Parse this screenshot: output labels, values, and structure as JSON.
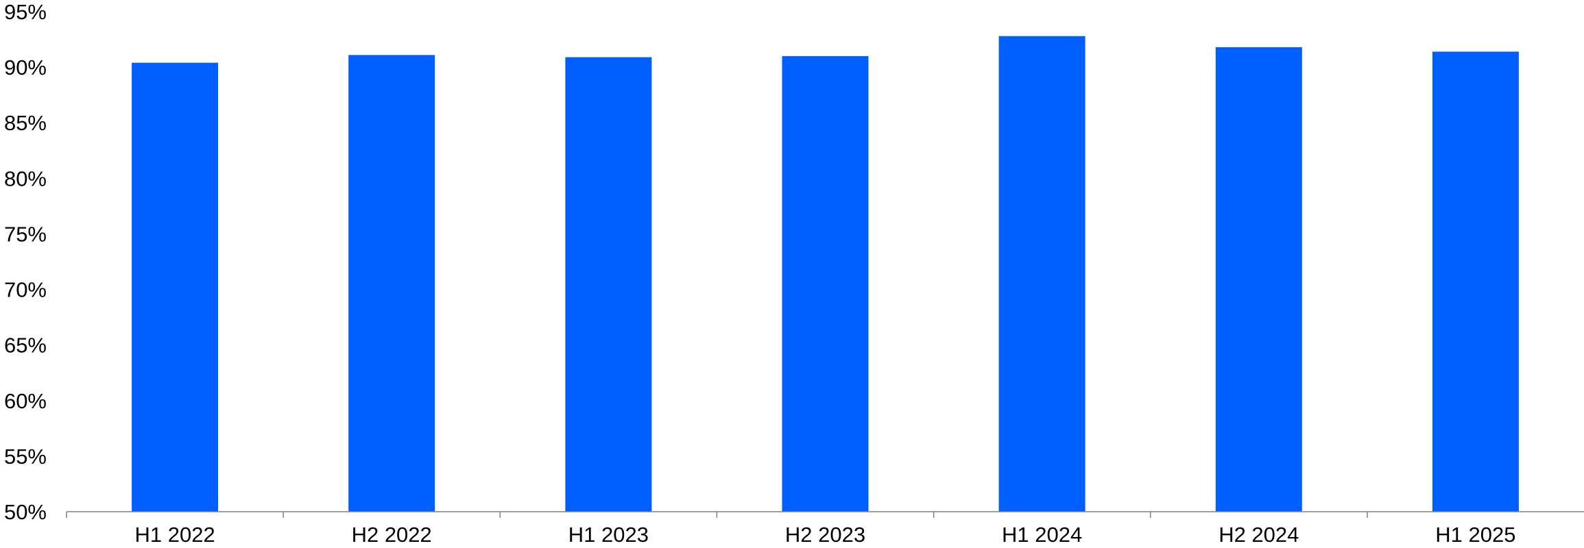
{
  "chart_data": {
    "type": "bar",
    "categories": [
      "H1 2022",
      "H2 2022",
      "H1 2023",
      "H2 2023",
      "H1 2024",
      "H2 2024",
      "H1 2025"
    ],
    "values": [
      90.4,
      91.1,
      90.9,
      91.0,
      92.8,
      91.8,
      91.4
    ],
    "y_tick_labels": [
      "50%",
      "55%",
      "60%",
      "65%",
      "70%",
      "75%",
      "80%",
      "85%",
      "90%",
      "95%"
    ],
    "y_ticks": [
      50,
      55,
      60,
      65,
      70,
      75,
      80,
      85,
      90,
      95
    ],
    "ylim": [
      50,
      95
    ],
    "value_unit": "%",
    "bar_color": "#0060FF",
    "axis_color": "#808080",
    "title": "",
    "xlabel": "",
    "ylabel": "",
    "grid": false,
    "legend": "none"
  }
}
